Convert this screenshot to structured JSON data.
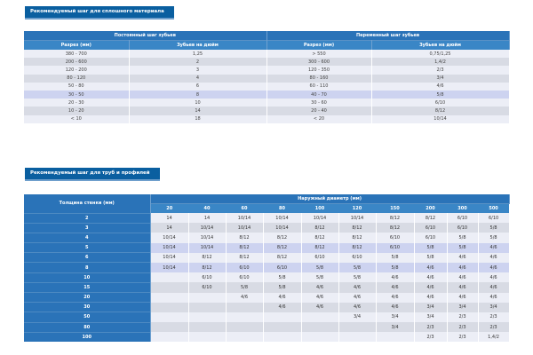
{
  "solid": {
    "title": "Рекомендуемый шаг для сплошного материала",
    "group_constant": "Постоянный шаг зубьев",
    "group_variable": "Переменный шаг зубьев",
    "col_section": "Разрез (мм)",
    "col_tpi": "Зубьев на дюйм",
    "rows": [
      {
        "c1": "380 - 700",
        "c2": "1,25",
        "c3": "> 550",
        "c4": "0,75/1,25"
      },
      {
        "c1": "200 - 600",
        "c2": "2",
        "c3": "300 - 600",
        "c4": "1,4/2"
      },
      {
        "c1": "120 - 200",
        "c2": "3",
        "c3": "120 - 350",
        "c4": "2/3"
      },
      {
        "c1": "80 - 120",
        "c2": "4",
        "c3": "80 - 160",
        "c4": "3/4"
      },
      {
        "c1": "50 - 80",
        "c2": "6",
        "c3": "60 - 110",
        "c4": "4/6"
      },
      {
        "c1": "30 - 50",
        "c2": "8",
        "c3": "40 - 70",
        "c4": "5/8"
      },
      {
        "c1": "20 - 30",
        "c2": "10",
        "c3": "30 - 60",
        "c4": "6/10"
      },
      {
        "c1": "10 - 20",
        "c2": "14",
        "c3": "20 - 40",
        "c4": "8/12"
      },
      {
        "c1": "< 10",
        "c2": "18",
        "c3": "< 20",
        "c4": "10/14"
      }
    ]
  },
  "pipes": {
    "title": "Рекомендуемый шаг для труб и профилей",
    "wall_header": "Толщина стенки (мм)",
    "diameter_header": "Наружный диаметр (мм)",
    "diameters": [
      "20",
      "40",
      "60",
      "80",
      "100",
      "120",
      "150",
      "200",
      "300",
      "500"
    ],
    "rows": [
      {
        "t": "2",
        "v": [
          "14",
          "14",
          "10/14",
          "10/14",
          "10/14",
          "10/14",
          "8/12",
          "8/12",
          "6/10",
          "6/10"
        ]
      },
      {
        "t": "3",
        "v": [
          "14",
          "10/14",
          "10/14",
          "10/14",
          "8/12",
          "8/12",
          "8/12",
          "6/10",
          "6/10",
          "5/8"
        ]
      },
      {
        "t": "4",
        "v": [
          "10/14",
          "10/14",
          "8/12",
          "8/12",
          "8/12",
          "8/12",
          "6/10",
          "6/10",
          "5/8",
          "5/8"
        ]
      },
      {
        "t": "5",
        "v": [
          "10/14",
          "10/14",
          "8/12",
          "8/12",
          "8/12",
          "8/12",
          "6/10",
          "5/8",
          "5/8",
          "4/6"
        ]
      },
      {
        "t": "6",
        "v": [
          "10/14",
          "8/12",
          "8/12",
          "8/12",
          "6/10",
          "6/10",
          "5/8",
          "5/8",
          "4/6",
          "4/6"
        ]
      },
      {
        "t": "8",
        "v": [
          "10/14",
          "8/12",
          "6/10",
          "6/10",
          "5/8",
          "5/8",
          "5/8",
          "4/6",
          "4/6",
          "4/6"
        ]
      },
      {
        "t": "10",
        "v": [
          "",
          "6/10",
          "6/10",
          "5/8",
          "5/8",
          "5/8",
          "4/6",
          "4/6",
          "4/6",
          "4/6"
        ]
      },
      {
        "t": "15",
        "v": [
          "",
          "6/10",
          "5/8",
          "5/8",
          "4/6",
          "4/6",
          "4/6",
          "4/6",
          "4/6",
          "4/6"
        ]
      },
      {
        "t": "20",
        "v": [
          "",
          "",
          "4/6",
          "4/6",
          "4/6",
          "4/6",
          "4/6",
          "4/6",
          "4/6",
          "4/6"
        ]
      },
      {
        "t": "30",
        "v": [
          "",
          "",
          "",
          "4/6",
          "4/6",
          "4/6",
          "4/6",
          "3/4",
          "3/4",
          "3/4"
        ]
      },
      {
        "t": "50",
        "v": [
          "",
          "",
          "",
          "",
          "",
          "3/4",
          "3/4",
          "3/4",
          "2/3",
          "2/3"
        ]
      },
      {
        "t": "80",
        "v": [
          "",
          "",
          "",
          "",
          "",
          "",
          "3/4",
          "2/3",
          "2/3",
          "2/3"
        ]
      },
      {
        "t": "100",
        "v": [
          "",
          "",
          "",
          "",
          "",
          "",
          "",
          "2/3",
          "2/3",
          "1,4/2"
        ]
      }
    ]
  }
}
